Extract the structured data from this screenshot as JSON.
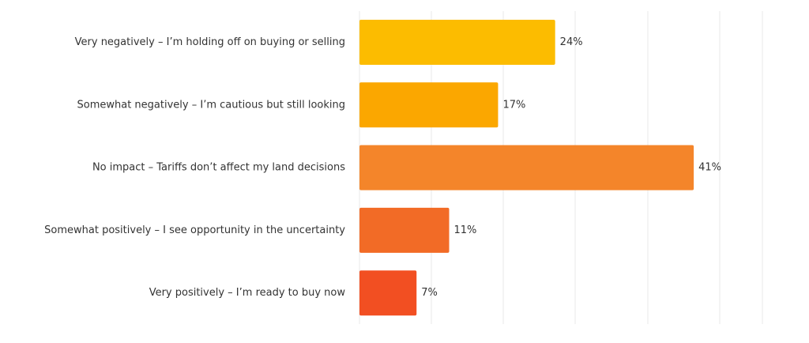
{
  "chart_data": {
    "type": "hbar",
    "categories": [
      "Very negatively – I’m holding off on buying or selling",
      "Somewhat negatively – I’m cautious but still looking",
      "No impact – Tariffs don’t affect my land decisions",
      "Somewhat positively – I see opportunity in the uncertainty",
      "Very positively – I’m ready to buy now"
    ],
    "values": [
      24,
      17,
      41,
      11,
      7
    ],
    "value_labels": [
      "24%",
      "17%",
      "41%",
      "11%",
      "7%"
    ],
    "colors": [
      "#fcbc00",
      "#fba700",
      "#f4852a",
      "#f26b26",
      "#f24f22"
    ],
    "xlim": [
      0,
      50
    ]
  }
}
